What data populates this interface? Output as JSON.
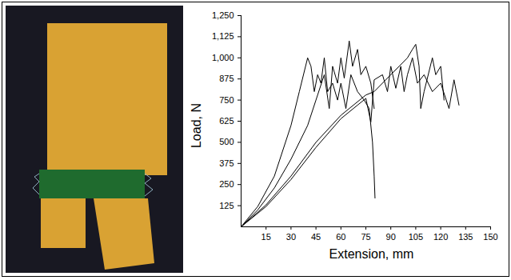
{
  "chart_data": {
    "type": "line",
    "x_label": "Extension, mm",
    "y_label": "Load, N",
    "xlim": [
      0,
      150
    ],
    "ylim": [
      0,
      1250
    ],
    "xticks": [
      15,
      30,
      45,
      60,
      75,
      90,
      105,
      120,
      135,
      150
    ],
    "yticks": [
      125,
      250,
      375,
      500,
      625,
      750,
      875,
      1000,
      1125,
      1250
    ],
    "grid": false,
    "series": [
      {
        "color": "#000000",
        "x": [
          0,
          10,
          20,
          30,
          35,
          40,
          42,
          44,
          46,
          48,
          50,
          52,
          55,
          58,
          60,
          63,
          66,
          70,
          74,
          77,
          79,
          80,
          80.5
        ],
        "values": [
          0,
          120,
          300,
          600,
          800,
          1000,
          950,
          800,
          900,
          850,
          1000,
          800,
          850,
          750,
          850,
          700,
          900,
          800,
          750,
          700,
          500,
          300,
          170
        ]
      },
      {
        "color": "#000000",
        "x": [
          0,
          10,
          20,
          30,
          40,
          45,
          50,
          53,
          55,
          58,
          60,
          62,
          65,
          67,
          70,
          72,
          75,
          78,
          80
        ],
        "values": [
          0,
          100,
          230,
          400,
          600,
          750,
          900,
          700,
          950,
          850,
          1000,
          880,
          1100,
          950,
          1050,
          900,
          950,
          850,
          700
        ]
      },
      {
        "color": "#000000",
        "x": [
          0,
          15,
          30,
          45,
          60,
          75,
          80,
          85,
          90,
          95,
          100,
          103,
          105,
          107,
          108,
          110,
          115,
          117,
          120,
          122
        ],
        "values": [
          0,
          130,
          300,
          500,
          660,
          780,
          800,
          850,
          900,
          950,
          1000,
          1050,
          1080,
          950,
          700,
          800,
          1000,
          900,
          950,
          750
        ]
      },
      {
        "color": "#000000",
        "x": [
          0,
          15,
          30,
          45,
          60,
          70,
          75,
          78,
          80,
          85,
          88,
          90,
          93,
          96,
          98,
          100,
          103,
          106,
          110,
          115,
          120,
          125,
          128,
          131
        ],
        "values": [
          0,
          120,
          280,
          470,
          640,
          720,
          760,
          620,
          870,
          900,
          800,
          950,
          820,
          950,
          800,
          900,
          1000,
          850,
          900,
          800,
          850,
          700,
          870,
          720
        ]
      }
    ]
  }
}
